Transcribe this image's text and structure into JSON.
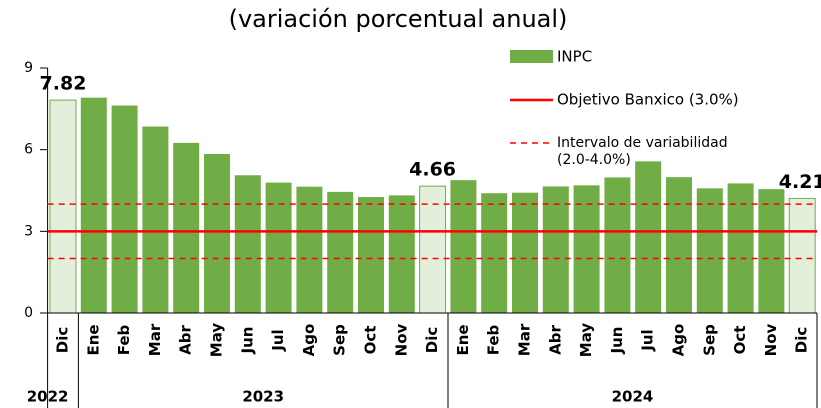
{
  "chart_data": {
    "type": "bar",
    "title": "(variación porcentual anual)",
    "categories": [
      "Dic",
      "Ene",
      "Feb",
      "Mar",
      "Abr",
      "May",
      "Jun",
      "Jul",
      "Ago",
      "Sep",
      "Oct",
      "Nov",
      "Dic",
      "Ene",
      "Feb",
      "Mar",
      "Abr",
      "May",
      "Jun",
      "Jul",
      "Ago",
      "Sep",
      "Oct",
      "Nov",
      "Dic"
    ],
    "series": [
      {
        "name": "INPC",
        "color": "#70ad47",
        "values": [
          7.82,
          7.91,
          7.62,
          6.85,
          6.25,
          5.84,
          5.06,
          4.79,
          4.64,
          4.45,
          4.26,
          4.32,
          4.66,
          4.88,
          4.4,
          4.42,
          4.65,
          4.69,
          4.98,
          5.57,
          4.99,
          4.58,
          4.76,
          4.55,
          4.21
        ]
      }
    ],
    "highlight_indices": [
      0,
      12,
      24
    ],
    "highlight_color": "#e2efda",
    "reference_lines": [
      {
        "name": "Objetivo Banxico (3.0%)",
        "values": [
          3.0
        ],
        "color": "#ff0000",
        "style": "solid"
      },
      {
        "name": [
          "Intervalo de variabilidad",
          "(2.0-4.0%)"
        ],
        "values": [
          2.0,
          4.0
        ],
        "color": "#ff0000",
        "style": "dashed"
      }
    ],
    "x_groups": [
      {
        "label": "2022",
        "start": 0,
        "end": 0
      },
      {
        "label": "2023",
        "start": 1,
        "end": 12
      },
      {
        "label": "2024",
        "start": 13,
        "end": 24
      }
    ],
    "ylim": [
      0,
      9
    ],
    "yticks": [
      0,
      3,
      6,
      9
    ]
  }
}
